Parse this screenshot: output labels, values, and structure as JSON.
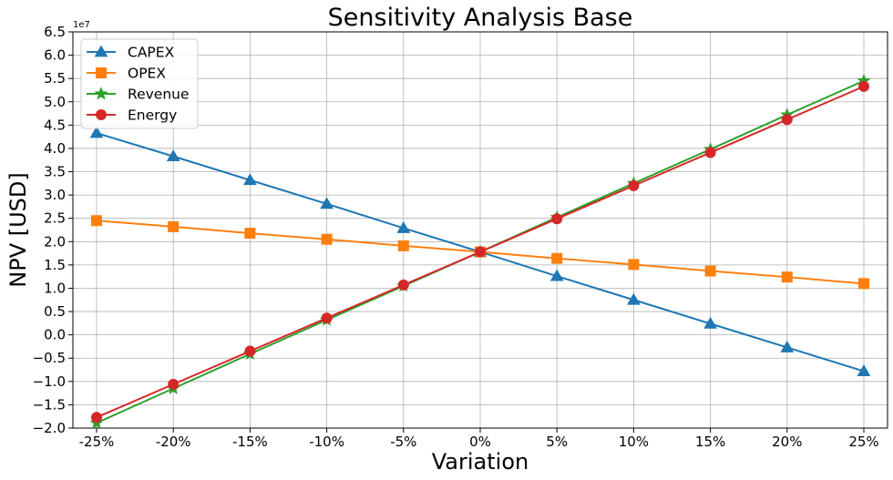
{
  "chart_data": {
    "type": "line",
    "title": "Sensitivity Analysis Base",
    "xlabel": "Variation",
    "ylabel": "NPV [USD]",
    "y_scale_label": "1e7",
    "categories": [
      "-25%",
      "-20%",
      "-15%",
      "-10%",
      "-5%",
      "0%",
      "5%",
      "10%",
      "15%",
      "20%",
      "25%"
    ],
    "ylim": [
      -2.0,
      6.5
    ],
    "y_ticks": [
      -2.0,
      -1.5,
      -1.0,
      -0.5,
      0.0,
      0.5,
      1.0,
      1.5,
      2.0,
      2.5,
      3.0,
      3.5,
      4.0,
      4.5,
      5.0,
      5.5,
      6.0,
      6.5
    ],
    "y_tick_labels": [
      "−2.0",
      "−1.5",
      "−1.0",
      "−0.5",
      "0.0",
      "0.5",
      "1.0",
      "1.5",
      "2.0",
      "2.5",
      "3.0",
      "3.5",
      "4.0",
      "4.5",
      "5.0",
      "5.5",
      "6.0",
      "6.5"
    ],
    "grid": true,
    "legend_position": "top-left",
    "series": [
      {
        "name": "CAPEX",
        "color": "#1f77b4",
        "marker": "triangle",
        "values": [
          4.33,
          3.83,
          3.32,
          2.81,
          2.29,
          1.78,
          1.26,
          0.75,
          0.24,
          -0.27,
          -0.78
        ]
      },
      {
        "name": "OPEX",
        "color": "#ff7f0e",
        "marker": "square",
        "values": [
          2.45,
          2.32,
          2.18,
          2.05,
          1.91,
          1.78,
          1.64,
          1.51,
          1.37,
          1.24,
          1.1
        ]
      },
      {
        "name": "Revenue",
        "color": "#2ca02c",
        "marker": "star",
        "values": [
          -1.89,
          -1.15,
          -0.41,
          0.32,
          1.05,
          1.78,
          2.52,
          3.25,
          3.98,
          4.72,
          5.45
        ]
      },
      {
        "name": "Energy",
        "color": "#d62728",
        "marker": "circle",
        "values": [
          -1.77,
          -1.06,
          -0.35,
          0.36,
          1.07,
          1.78,
          2.49,
          3.2,
          3.91,
          4.62,
          5.33
        ]
      }
    ]
  }
}
